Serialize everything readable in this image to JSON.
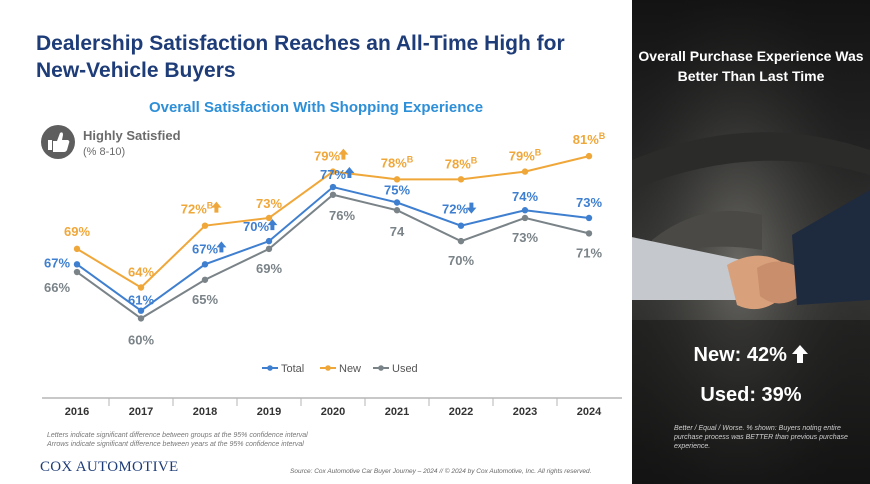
{
  "slide": {
    "title": "Dealership Satisfaction Reaches an All-Time High for New-Vehicle Buyers",
    "subtitle": "Overall Satisfaction With Shopping Experience",
    "badge_title": "Highly Satisfied",
    "badge_subtitle": "(% 8-10)",
    "thumb_icon": "thumbs-up-icon",
    "footnote_1": "Letters indicate significant difference between groups at the 95% confidence interval",
    "footnote_2": "Arrows indicate significant difference between years at the 95% confidence interval",
    "logo": "COX AUTOMOTIVE",
    "source": "Source: Cox Automotive Car Buyer Journey – 2024 // © 2024 by Cox Automotive, Inc. All rights reserved."
  },
  "right_panel": {
    "title": "Overall Purchase Experience Was Better Than Last Time",
    "new_stat": "New: 42%",
    "new_arrow_icon": "arrow-up-icon",
    "used_stat": "Used: 39%",
    "note": "Better / Equal / Worse. % shown: Buyers noting entire purchase process was BETTER than previous purchase experience."
  },
  "colors": {
    "title": "#1e3c78",
    "subtitle": "#2d8fd8",
    "total": "#3f7fd0",
    "new": "#f0a73a",
    "used": "#7a8388"
  },
  "chart_data": {
    "type": "line",
    "x": [
      "2016",
      "2017",
      "2018",
      "2019",
      "2020",
      "2021",
      "2022",
      "2023",
      "2024"
    ],
    "series": [
      {
        "name": "Total",
        "color": "#3f7fd0",
        "values": [
          67,
          61,
          67,
          70,
          77,
          75,
          72,
          74,
          73
        ],
        "labels": [
          "67%",
          "61%",
          "67%",
          "70%",
          "77%",
          "75%",
          "72%",
          "74%",
          "73%"
        ],
        "arrows": [
          "",
          "",
          "up",
          "up",
          "up",
          "",
          "down",
          "",
          ""
        ],
        "superscripts": [
          "",
          "",
          "",
          "",
          "",
          "",
          "",
          "",
          ""
        ]
      },
      {
        "name": "New",
        "color": "#f0a73a",
        "values": [
          69,
          64,
          72,
          73,
          79,
          78,
          78,
          79,
          81
        ],
        "labels": [
          "69%",
          "64%",
          "72%",
          "73%",
          "79%",
          "78%",
          "78%",
          "79%",
          "81%"
        ],
        "arrows": [
          "",
          "",
          "up",
          "",
          "up",
          "",
          "",
          "",
          ""
        ],
        "superscripts": [
          "",
          "",
          "B",
          "",
          "",
          "B",
          "B",
          "B",
          "B"
        ]
      },
      {
        "name": "Used",
        "color": "#7a8388",
        "values": [
          66,
          60,
          65,
          69,
          76,
          74,
          70,
          73,
          71
        ],
        "labels": [
          "66%",
          "60%",
          "65%",
          "69%",
          "76%",
          "74",
          "70%",
          "73%",
          "71%"
        ],
        "arrows": [
          "",
          "",
          "",
          "",
          "",
          "",
          "",
          "",
          ""
        ],
        "superscripts": [
          "",
          "",
          "",
          "",
          "",
          "",
          "",
          "",
          ""
        ]
      }
    ],
    "ylim": [
      56,
      86
    ],
    "legend_position": "bottom-center",
    "grid": false
  }
}
